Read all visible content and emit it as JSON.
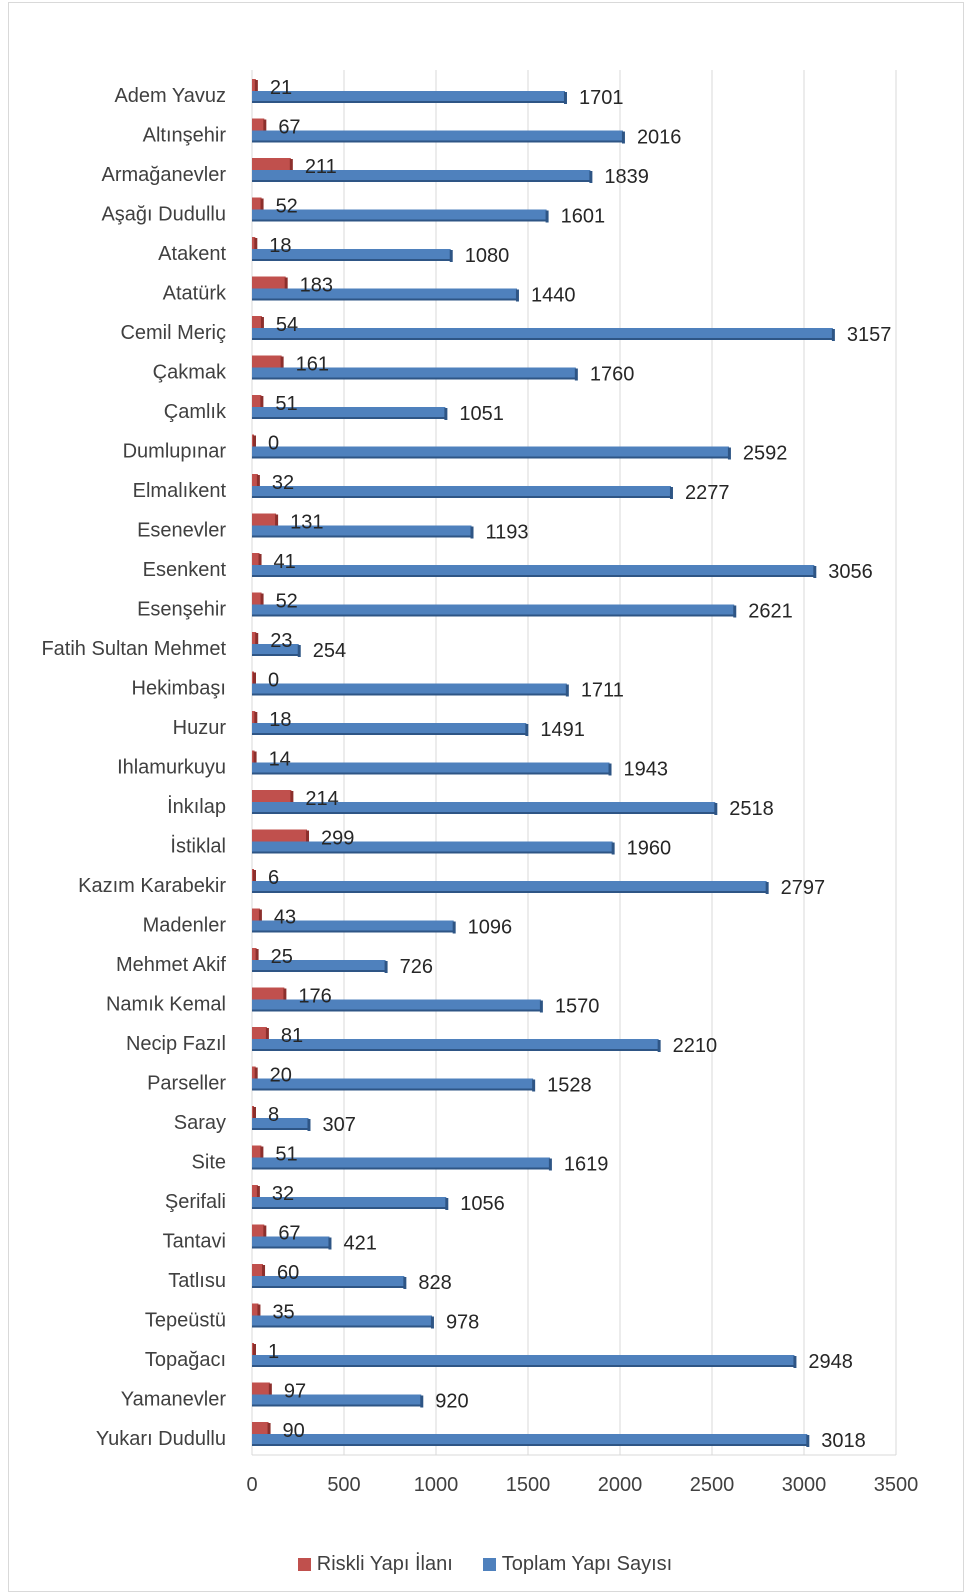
{
  "chart_data": {
    "type": "bar",
    "orientation": "horizontal",
    "title": "",
    "xlabel": "",
    "ylabel": "",
    "xlim": [
      0,
      3500
    ],
    "x_ticks": [
      0,
      500,
      1000,
      1500,
      2000,
      2500,
      3000,
      3500
    ],
    "grid": "vertical",
    "legend_position": "bottom",
    "categories": [
      "Adem Yavuz",
      "Altınşehir",
      "Armağanevler",
      "Aşağı Dudullu",
      "Atakent",
      "Atatürk",
      "Cemil Meriç",
      "Çakmak",
      "Çamlık",
      "Dumlupınar",
      "Elmalıkent",
      "Esenevler",
      "Esenkent",
      "Esenşehir",
      "Fatih Sultan Mehmet",
      "Hekimbaşı",
      "Huzur",
      "Ihlamurkuyu",
      "İnkılap",
      "İstiklal",
      "Kazım Karabekir",
      "Madenler",
      "Mehmet Akif",
      "Namık Kemal",
      "Necip Fazıl",
      "Parseller",
      "Saray",
      "Site",
      "Şerifali",
      "Tantavi",
      "Tatlısu",
      "Tepeüstü",
      "Topağacı",
      "Yamanevler",
      "Yukarı Dudullu"
    ],
    "series": [
      {
        "name": "Riskli Yapı İlanı",
        "color": "#c0504d",
        "values": [
          21,
          67,
          211,
          52,
          18,
          183,
          54,
          161,
          51,
          0,
          32,
          131,
          41,
          52,
          23,
          0,
          18,
          14,
          214,
          299,
          6,
          43,
          25,
          176,
          81,
          20,
          8,
          51,
          32,
          67,
          60,
          35,
          1,
          97,
          90
        ]
      },
      {
        "name": "Toplam Yapı Sayısı",
        "color": "#4f81bd",
        "values": [
          1701,
          2016,
          1839,
          1601,
          1080,
          1440,
          3157,
          1760,
          1051,
          2592,
          2277,
          1193,
          3056,
          2621,
          254,
          1711,
          1491,
          1943,
          2518,
          1960,
          2797,
          1096,
          726,
          1570,
          2210,
          1528,
          307,
          1619,
          1056,
          421,
          828,
          978,
          2948,
          920,
          3018
        ]
      }
    ]
  }
}
